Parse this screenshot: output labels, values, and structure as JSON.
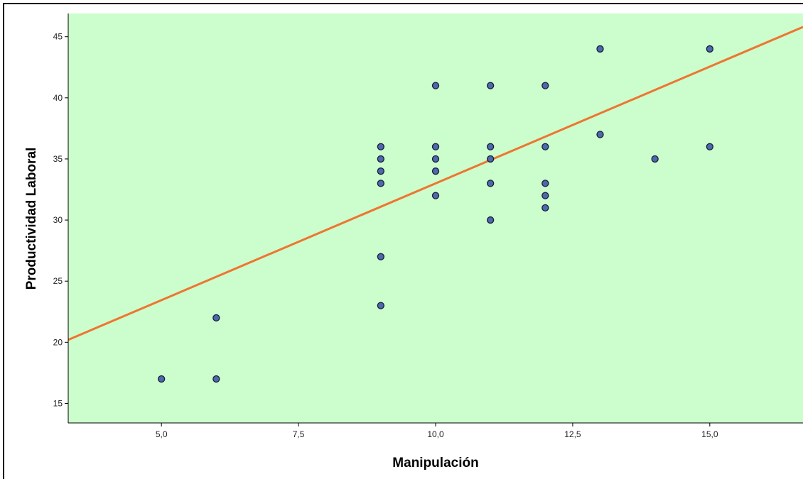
{
  "chart_data": {
    "type": "scatter",
    "xlabel": "Manipulación",
    "ylabel": "Productividad Laboral",
    "xlim": [
      3.3,
      16.7
    ],
    "ylim": [
      13.4,
      46.9
    ],
    "x_ticks": [
      5.0,
      7.5,
      10.0,
      12.5,
      15.0
    ],
    "x_tick_labels": [
      "5,0",
      "7,5",
      "10,0",
      "12,5",
      "15,0"
    ],
    "y_ticks": [
      15,
      20,
      25,
      30,
      35,
      40,
      45
    ],
    "y_tick_labels": [
      "15",
      "20",
      "25",
      "30",
      "35",
      "40",
      "45"
    ],
    "grid": false,
    "points": [
      {
        "x": 5,
        "y": 17
      },
      {
        "x": 6,
        "y": 22
      },
      {
        "x": 6,
        "y": 17
      },
      {
        "x": 9,
        "y": 36
      },
      {
        "x": 9,
        "y": 35
      },
      {
        "x": 9,
        "y": 34
      },
      {
        "x": 9,
        "y": 33
      },
      {
        "x": 9,
        "y": 27
      },
      {
        "x": 9,
        "y": 23
      },
      {
        "x": 10,
        "y": 41
      },
      {
        "x": 10,
        "y": 36
      },
      {
        "x": 10,
        "y": 35
      },
      {
        "x": 10,
        "y": 34
      },
      {
        "x": 10,
        "y": 32
      },
      {
        "x": 11,
        "y": 41
      },
      {
        "x": 11,
        "y": 36
      },
      {
        "x": 11,
        "y": 35
      },
      {
        "x": 11,
        "y": 33
      },
      {
        "x": 11,
        "y": 30
      },
      {
        "x": 12,
        "y": 41
      },
      {
        "x": 12,
        "y": 36
      },
      {
        "x": 12,
        "y": 33
      },
      {
        "x": 12,
        "y": 32
      },
      {
        "x": 12,
        "y": 31
      },
      {
        "x": 13,
        "y": 44
      },
      {
        "x": 13,
        "y": 37
      },
      {
        "x": 14,
        "y": 35
      },
      {
        "x": 15,
        "y": 44
      },
      {
        "x": 15,
        "y": 36
      }
    ],
    "fit_line": {
      "x": [
        3.3,
        16.7
      ],
      "y": [
        20.2,
        45.8
      ]
    },
    "colors": {
      "plot_background": "#ccfdcc",
      "point_fill": "#4a6aab",
      "point_stroke": "#1a1a3a",
      "fit_line": "#ee7530"
    }
  }
}
